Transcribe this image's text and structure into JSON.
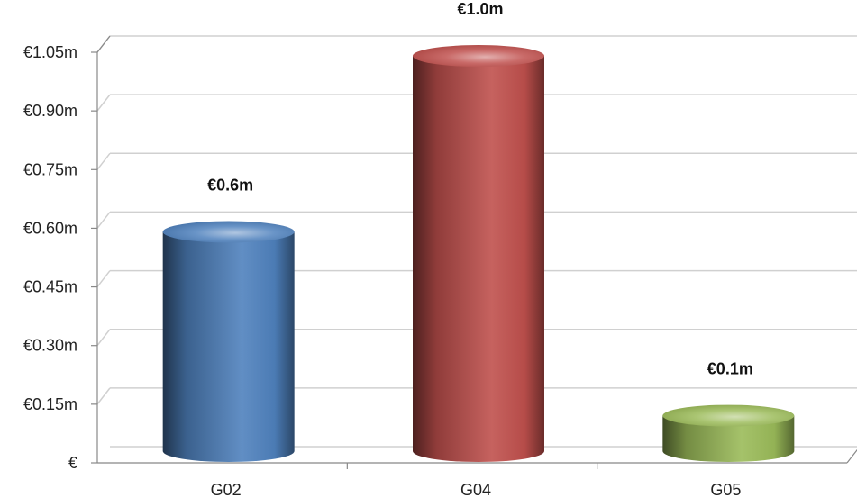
{
  "chart_data": {
    "type": "bar",
    "title": "",
    "xlabel": "",
    "ylabel": "",
    "categories": [
      "G02",
      "G04",
      "G05"
    ],
    "values": [
      0.57,
      1.02,
      0.1
    ],
    "data_labels": [
      "€0.6m",
      "€1.0m",
      "€0.1m"
    ],
    "ylim": [
      0,
      1.05
    ],
    "yticks": [
      0,
      0.15,
      0.3,
      0.45,
      0.6,
      0.75,
      0.9,
      1.05
    ],
    "ytick_labels": [
      "€",
      "€0.15m",
      "€0.30m",
      "€0.45m",
      "€0.60m",
      "€0.75m",
      "€0.90m",
      "€1.05m"
    ],
    "grid": true,
    "style": "3d-cylinder",
    "colors": [
      "#4f81bd",
      "#c0504d",
      "#9bbb59"
    ]
  }
}
